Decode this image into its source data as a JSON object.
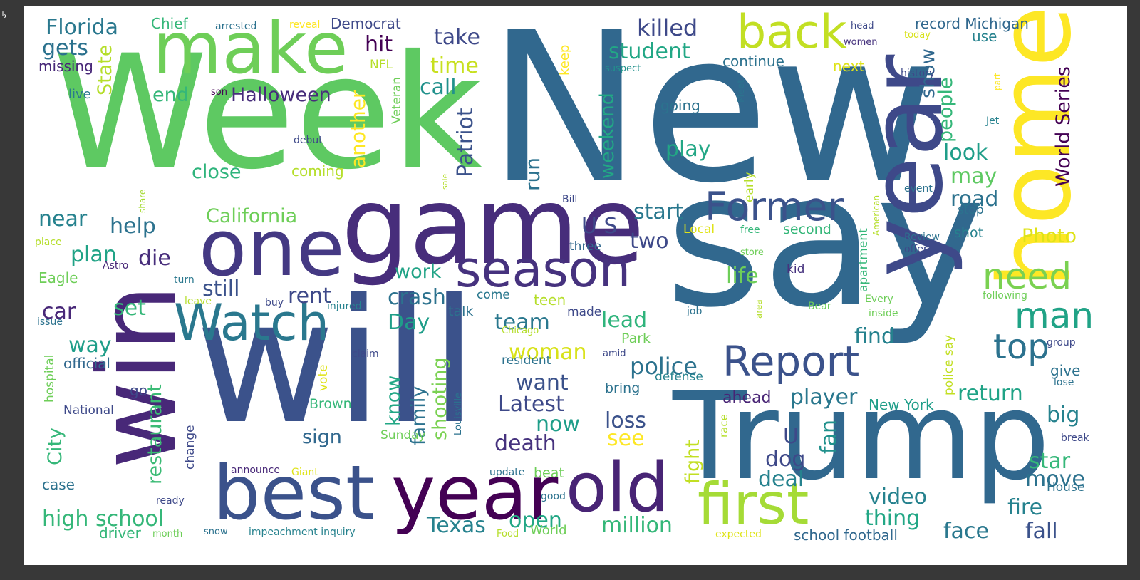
{
  "arrow_glyph": "↳",
  "colors": {
    "background": "#383838",
    "canvas": "#ffffff",
    "palette": [
      "#440154",
      "#482878",
      "#3e4989",
      "#31688e",
      "#26828e",
      "#1f9e89",
      "#35b779",
      "#6ece58",
      "#b5de2b",
      "#fde725"
    ]
  },
  "words": [
    {
      "text": "New",
      "color": "#31688e"
    },
    {
      "text": "Week",
      "color": "#5ec962"
    },
    {
      "text": "say",
      "color": "#31688e"
    },
    {
      "text": "will",
      "color": "#3b528b"
    },
    {
      "text": "Trump",
      "color": "#31688e"
    },
    {
      "text": "win",
      "color": "#482878"
    },
    {
      "text": "game",
      "color": "#472d7b"
    },
    {
      "text": "make",
      "color": "#6ece58"
    },
    {
      "text": "year",
      "color": "#3e4989"
    },
    {
      "text": "home",
      "color": "#fde725"
    },
    {
      "text": "one",
      "color": "#443983"
    },
    {
      "text": "best",
      "color": "#3b528b"
    },
    {
      "text": "year",
      "color": "#440154"
    },
    {
      "text": "old",
      "color": "#482475"
    },
    {
      "text": "first",
      "color": "#a5db36"
    },
    {
      "text": "Watch",
      "color": "#2a788e"
    },
    {
      "text": "season",
      "color": "#46327e"
    },
    {
      "text": "back",
      "color": "#c2df23"
    },
    {
      "text": "Former",
      "color": "#3b528b"
    },
    {
      "text": "Report",
      "color": "#3b528b"
    },
    {
      "text": "need",
      "color": "#7ad151"
    },
    {
      "text": "man",
      "color": "#20a386"
    },
    {
      "text": "top",
      "color": "#2c728e"
    },
    {
      "text": "killed",
      "color": "#3e4989"
    },
    {
      "text": "student",
      "color": "#22a785"
    },
    {
      "text": "Halloween",
      "color": "#472d7b"
    },
    {
      "text": "Florida",
      "color": "#2a788e"
    },
    {
      "text": "gets",
      "color": "#2c728e"
    },
    {
      "text": "take",
      "color": "#3e4989"
    },
    {
      "text": "hit",
      "color": "#440154"
    },
    {
      "text": "time",
      "color": "#c8e020"
    },
    {
      "text": "call",
      "color": "#21918c"
    },
    {
      "text": "end",
      "color": "#35b779"
    },
    {
      "text": "State",
      "color": "#b5de2b"
    },
    {
      "text": "Patriot",
      "color": "#3b528b"
    },
    {
      "text": "another",
      "color": "#fde725"
    },
    {
      "text": "run",
      "color": "#2c728e"
    },
    {
      "text": "weekend",
      "color": "#22a785"
    },
    {
      "text": "close",
      "color": "#2fb47c"
    },
    {
      "text": "coming",
      "color": "#b5de2b"
    },
    {
      "text": "California",
      "color": "#6ece58"
    },
    {
      "text": "near",
      "color": "#26828e"
    },
    {
      "text": "help",
      "color": "#2c728e"
    },
    {
      "text": "plan",
      "color": "#20a386"
    },
    {
      "text": "die",
      "color": "#472d7b"
    },
    {
      "text": "still",
      "color": "#3b528b"
    },
    {
      "text": "rent",
      "color": "#3e4989"
    },
    {
      "text": "crash",
      "color": "#2c728e"
    },
    {
      "text": "work",
      "color": "#20a386"
    },
    {
      "text": "Day",
      "color": "#1f9e89"
    },
    {
      "text": "team",
      "color": "#2a788e"
    },
    {
      "text": "car",
      "color": "#482878"
    },
    {
      "text": "set",
      "color": "#35b779"
    },
    {
      "text": "way",
      "color": "#1f9e89"
    },
    {
      "text": "official",
      "color": "#31688e"
    },
    {
      "text": "play",
      "color": "#22a785"
    },
    {
      "text": "start",
      "color": "#2a788e"
    },
    {
      "text": "two",
      "color": "#3e4989"
    },
    {
      "text": "U S",
      "color": "#3e4989"
    },
    {
      "text": "look",
      "color": "#1f9e89"
    },
    {
      "text": "may",
      "color": "#5ec962"
    },
    {
      "text": "road",
      "color": "#2c728e"
    },
    {
      "text": "people",
      "color": "#35b779"
    },
    {
      "text": "show",
      "color": "#31688e"
    },
    {
      "text": "World Series",
      "color": "#440154"
    },
    {
      "text": "Photo",
      "color": "#dfe318"
    },
    {
      "text": "life",
      "color": "#6ece58"
    },
    {
      "text": "lead",
      "color": "#2fb47c"
    },
    {
      "text": "find",
      "color": "#26828e"
    },
    {
      "text": "police",
      "color": "#2c728e"
    },
    {
      "text": "woman",
      "color": "#d8e219"
    },
    {
      "text": "want",
      "color": "#3b528b"
    },
    {
      "text": "Latest",
      "color": "#3e4989"
    },
    {
      "text": "now",
      "color": "#1f9e89"
    },
    {
      "text": "loss",
      "color": "#3b528b"
    },
    {
      "text": "see",
      "color": "#fde725"
    },
    {
      "text": "death",
      "color": "#46327e"
    },
    {
      "text": "player",
      "color": "#2a788e"
    },
    {
      "text": "return",
      "color": "#20a386"
    },
    {
      "text": "big",
      "color": "#26828e"
    },
    {
      "text": "star",
      "color": "#35b779"
    },
    {
      "text": "move",
      "color": "#2c728e"
    },
    {
      "text": "fire",
      "color": "#26828e"
    },
    {
      "text": "face",
      "color": "#2a788e"
    },
    {
      "text": "fall",
      "color": "#3b528b"
    },
    {
      "text": "deal",
      "color": "#26828e"
    },
    {
      "text": "dog",
      "color": "#3e4989"
    },
    {
      "text": "fan",
      "color": "#21918c"
    },
    {
      "text": "U",
      "color": "#3e4989"
    },
    {
      "text": "video",
      "color": "#26828e"
    },
    {
      "text": "thing",
      "color": "#22a785"
    },
    {
      "text": "million",
      "color": "#35b779"
    },
    {
      "text": "open",
      "color": "#22a785"
    },
    {
      "text": "Texas",
      "color": "#26828e"
    },
    {
      "text": "high school",
      "color": "#35b779"
    },
    {
      "text": "restaurant",
      "color": "#3bbb75"
    },
    {
      "text": "City",
      "color": "#35b779"
    },
    {
      "text": "know",
      "color": "#22a785"
    },
    {
      "text": "family",
      "color": "#2c728e"
    },
    {
      "text": "shooting",
      "color": "#7ad151"
    },
    {
      "text": "sign",
      "color": "#31688e"
    },
    {
      "text": "fight",
      "color": "#c2df23"
    },
    {
      "text": "ahead",
      "color": "#482475"
    },
    {
      "text": "New York",
      "color": "#1f9e89"
    },
    {
      "text": "case",
      "color": "#2c728e"
    },
    {
      "text": "driver",
      "color": "#35b779"
    },
    {
      "text": "school football",
      "color": "#31688e"
    },
    {
      "text": "record Michigan",
      "color": "#31688e"
    },
    {
      "text": "Democrat",
      "color": "#3e4989"
    },
    {
      "text": "Chief",
      "color": "#35b779"
    },
    {
      "text": "arrested",
      "color": "#2c728e"
    },
    {
      "text": "reveal",
      "color": "#fde725"
    },
    {
      "text": "missing",
      "color": "#482878"
    },
    {
      "text": "NFL",
      "color": "#b5de2b"
    },
    {
      "text": "Veteran",
      "color": "#6ece58"
    },
    {
      "text": "continue",
      "color": "#2c728e"
    },
    {
      "text": "next",
      "color": "#dfe318"
    },
    {
      "text": "going",
      "color": "#2c728e"
    },
    {
      "text": "suspect",
      "color": "#21918c"
    },
    {
      "text": "keep",
      "color": "#fde725"
    },
    {
      "text": "head",
      "color": "#3e4989"
    },
    {
      "text": "women",
      "color": "#46327e"
    },
    {
      "text": "today",
      "color": "#d8e219"
    },
    {
      "text": "use",
      "color": "#26828e"
    },
    {
      "text": "history",
      "color": "#3e4989"
    },
    {
      "text": "part",
      "color": "#fde725"
    },
    {
      "text": "Meet",
      "color": "#2c728e"
    },
    {
      "text": "Jet",
      "color": "#26828e"
    },
    {
      "text": "live",
      "color": "#2a788e"
    },
    {
      "text": "son",
      "color": "#440154"
    },
    {
      "text": "debut",
      "color": "#3e4989"
    },
    {
      "text": "sale",
      "color": "#b5de2b"
    },
    {
      "text": "share",
      "color": "#a5db36"
    },
    {
      "text": "early",
      "color": "#b5de2b"
    },
    {
      "text": "event",
      "color": "#2c728e"
    },
    {
      "text": "American",
      "color": "#b5de2b"
    },
    {
      "text": "Bill",
      "color": "#3e4989"
    },
    {
      "text": "stop",
      "color": "#2c728e"
    },
    {
      "text": "shot",
      "color": "#26828e"
    },
    {
      "text": "Review",
      "color": "#2c728e"
    },
    {
      "text": "offer",
      "color": "#3e4989"
    },
    {
      "text": "apartment",
      "color": "#35b779"
    },
    {
      "text": "second",
      "color": "#35b779"
    },
    {
      "text": "free",
      "color": "#35b779"
    },
    {
      "text": "Local",
      "color": "#dfe318"
    },
    {
      "text": "store",
      "color": "#6ece58"
    },
    {
      "text": "three",
      "color": "#31688e"
    },
    {
      "text": "kid",
      "color": "#46327e"
    },
    {
      "text": "place",
      "color": "#b5de2b"
    },
    {
      "text": "Astro",
      "color": "#482878"
    },
    {
      "text": "turn",
      "color": "#2a788e"
    },
    {
      "text": "Eagle",
      "color": "#6ece58"
    },
    {
      "text": "leave",
      "color": "#b5de2b"
    },
    {
      "text": "buy",
      "color": "#3e4989"
    },
    {
      "text": "injured",
      "color": "#26828e"
    },
    {
      "text": "come",
      "color": "#2a788e"
    },
    {
      "text": "teen",
      "color": "#b5de2b"
    },
    {
      "text": "talk",
      "color": "#2c728e"
    },
    {
      "text": "made",
      "color": "#3e4989"
    },
    {
      "text": "job",
      "color": "#2c728e"
    },
    {
      "text": "area",
      "color": "#b5de2b"
    },
    {
      "text": "Bear",
      "color": "#6ece58"
    },
    {
      "text": "Every",
      "color": "#6ece58"
    },
    {
      "text": "following",
      "color": "#6ece58"
    },
    {
      "text": "inside",
      "color": "#6ece58"
    },
    {
      "text": "issue",
      "color": "#2c728e"
    },
    {
      "text": "hospital",
      "color": "#6ece58"
    },
    {
      "text": "Chicago",
      "color": "#b5de2b"
    },
    {
      "text": "claim",
      "color": "#3e4989"
    },
    {
      "text": "amid",
      "color": "#3e4989"
    },
    {
      "text": "resident",
      "color": "#2c728e"
    },
    {
      "text": "Park",
      "color": "#6ece58"
    },
    {
      "text": "defense",
      "color": "#26828e"
    },
    {
      "text": "bring",
      "color": "#2c728e"
    },
    {
      "text": "police say",
      "color": "#c2df23"
    },
    {
      "text": "group",
      "color": "#3e4989"
    },
    {
      "text": "give",
      "color": "#2c728e"
    },
    {
      "text": "lose",
      "color": "#2c728e"
    },
    {
      "text": "go",
      "color": "#3e4989"
    },
    {
      "text": "vote",
      "color": "#dfe318"
    },
    {
      "text": "Brown",
      "color": "#35b779"
    },
    {
      "text": "Louisville",
      "color": "#2c728e"
    },
    {
      "text": "Sunday",
      "color": "#6ece58"
    },
    {
      "text": "National",
      "color": "#3e4989"
    },
    {
      "text": "change",
      "color": "#3e4989"
    },
    {
      "text": "race",
      "color": "#b5de2b"
    },
    {
      "text": "break",
      "color": "#3e4989"
    },
    {
      "text": "announce",
      "color": "#482878"
    },
    {
      "text": "Giant",
      "color": "#dfe318"
    },
    {
      "text": "update",
      "color": "#2c728e"
    },
    {
      "text": "beat",
      "color": "#6ece58"
    },
    {
      "text": "House",
      "color": "#2c728e"
    },
    {
      "text": "ready",
      "color": "#3e4989"
    },
    {
      "text": "good",
      "color": "#2c728e"
    },
    {
      "text": "month",
      "color": "#6ece58"
    },
    {
      "text": "snow",
      "color": "#2c728e"
    },
    {
      "text": "impeachment inquiry",
      "color": "#26828e"
    },
    {
      "text": "Food",
      "color": "#b5de2b"
    },
    {
      "text": "World",
      "color": "#6ece58"
    },
    {
      "text": "expected",
      "color": "#dfe318"
    }
  ]
}
